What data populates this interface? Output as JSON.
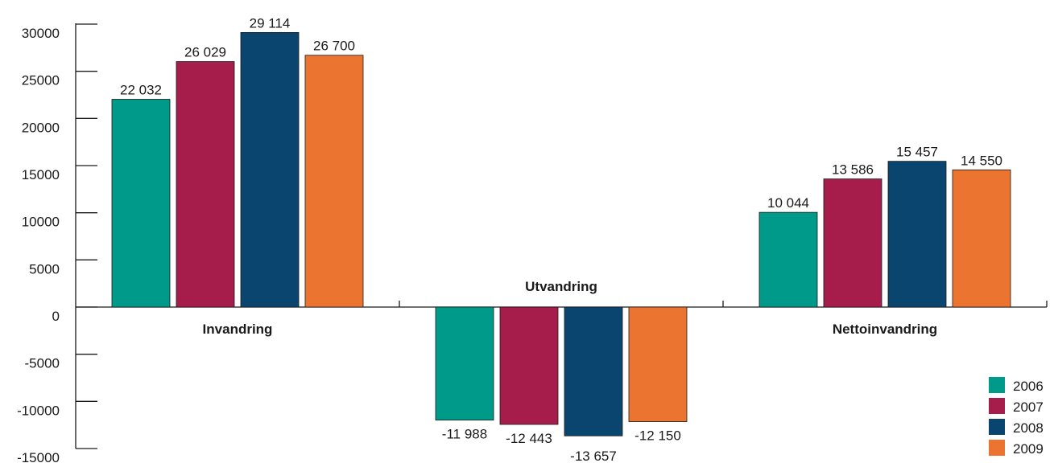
{
  "chart_data": {
    "type": "bar",
    "categories": [
      "Invandring",
      "Utvandring",
      "Nettoinvandring"
    ],
    "series": [
      {
        "name": "2006",
        "color": "#009a8a",
        "values": [
          22032,
          -11988,
          10044
        ],
        "labels": [
          "22 032",
          "-11 988",
          "10 044"
        ]
      },
      {
        "name": "2007",
        "color": "#a61c4b",
        "values": [
          26029,
          -12443,
          13586
        ],
        "labels": [
          "26 029",
          "-12 443",
          "13 586"
        ]
      },
      {
        "name": "2008",
        "color": "#0a4570",
        "values": [
          29114,
          -13657,
          15457
        ],
        "labels": [
          "29 114",
          "-13 657",
          "15 457"
        ]
      },
      {
        "name": "2009",
        "color": "#ec7431",
        "values": [
          26700,
          -12150,
          14550
        ],
        "labels": [
          "26 700",
          "-12 150",
          "14 550"
        ]
      }
    ],
    "yticks": [
      30000,
      25000,
      20000,
      15000,
      10000,
      5000,
      0,
      -5000,
      -10000,
      -15000
    ],
    "ylim": [
      -15000,
      30000
    ],
    "legend_position": "bottom-right",
    "grid": false
  }
}
